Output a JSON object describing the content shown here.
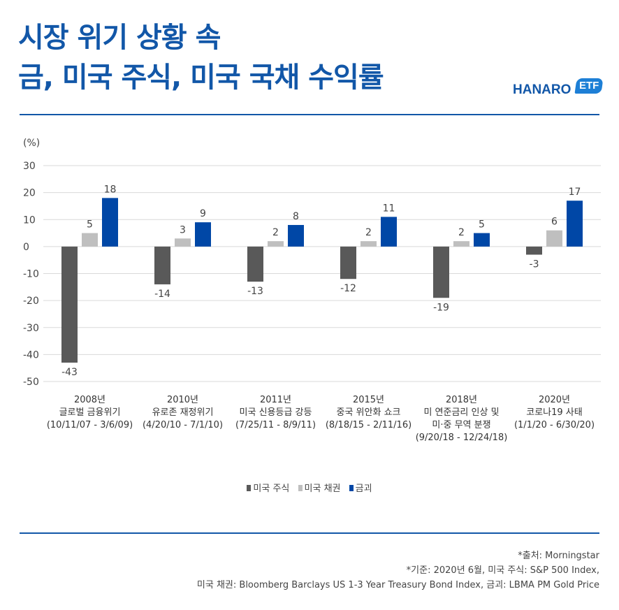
{
  "title_lines": [
    "시장 위기 상황 속",
    "금, 미국 주식, 미국 국채 수익률"
  ],
  "logo": {
    "text": "HANARO",
    "badge": "ETF"
  },
  "colors": {
    "title": "#1257a8",
    "stocks": "#595959",
    "bonds": "#bfbfbf",
    "gold": "#0047a6",
    "grid": "#d9d9d9"
  },
  "chart_data": {
    "type": "bar",
    "unit_label": "(%)",
    "ylim": [
      -50,
      30
    ],
    "yticks": [
      30,
      20,
      10,
      0,
      -10,
      -20,
      -30,
      -40,
      -50
    ],
    "grid": true,
    "legend_position": "bottom",
    "categories": [
      [
        "2008년",
        "글로벌 금융위기",
        "(10/11/07 - 3/6/09)"
      ],
      [
        "2010년",
        "유로존 재정위기",
        "(4/20/10 - 7/1/10)"
      ],
      [
        "2011년",
        "미국 신용등급 강등",
        "(7/25/11 - 8/9/11)"
      ],
      [
        "2015년",
        "중국 위안화 쇼크",
        "(8/18/15 - 2/11/16)"
      ],
      [
        "2018년",
        "미 연준금리 인상 및",
        "미·중 무역 분쟁",
        "(9/20/18 - 12/24/18)"
      ],
      [
        "2020년",
        "코로나19 사태",
        "(1/1/20 - 6/30/20)"
      ]
    ],
    "series": [
      {
        "name": "미국 주식",
        "values": [
          -43,
          -14,
          -13,
          -12,
          -19,
          -3
        ]
      },
      {
        "name": "미국 채권",
        "values": [
          5,
          3,
          2,
          2,
          2,
          6
        ]
      },
      {
        "name": "금괴",
        "values": [
          18,
          9,
          8,
          11,
          5,
          17
        ]
      }
    ]
  },
  "footnotes": [
    "*출처: Morningstar",
    "*기준: 2020년 6월, 미국 주식: S&P 500 Index,",
    "미국 채권: Bloomberg Barclays US 1-3 Year Treasury Bond Index, 금괴: LBMA PM Gold Price"
  ]
}
